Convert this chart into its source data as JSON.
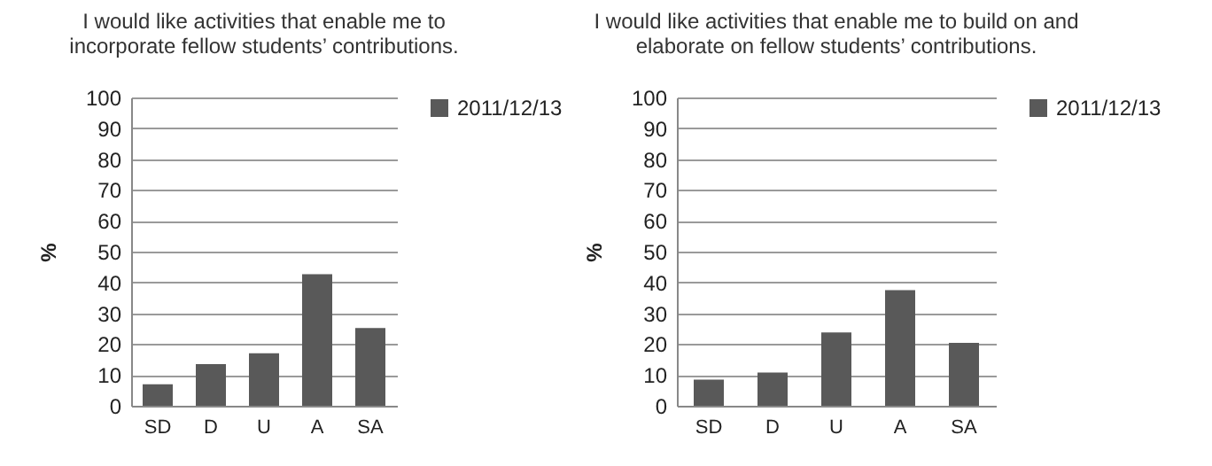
{
  "chart_data": [
    {
      "type": "bar",
      "title": "I would like activities that enable me to\nincorporate fellow students’ contributions.",
      "ylabel": "%",
      "categories": [
        "SD",
        "D",
        "U",
        "A",
        "SA"
      ],
      "series": [
        {
          "name": "2011/12/13",
          "color": "#595959",
          "values": [
            7,
            13.5,
            17,
            42.7,
            25.2
          ]
        }
      ],
      "ylim": [
        0,
        100
      ],
      "yticks": [
        0,
        10,
        20,
        30,
        40,
        50,
        60,
        70,
        80,
        90,
        100
      ],
      "grid": "y",
      "legend": "right"
    },
    {
      "type": "bar",
      "title": "I would like activities that enable me to build on and\nelaborate on fellow students’ contributions.",
      "ylabel": "%",
      "categories": [
        "SD",
        "D",
        "U",
        "A",
        "SA"
      ],
      "series": [
        {
          "name": "2011/12/13",
          "color": "#595959",
          "values": [
            8.5,
            10.8,
            23.8,
            37.5,
            20.4
          ]
        }
      ],
      "ylim": [
        0,
        100
      ],
      "yticks": [
        0,
        10,
        20,
        30,
        40,
        50,
        60,
        70,
        80,
        90,
        100
      ],
      "grid": "y",
      "legend": "right"
    }
  ]
}
